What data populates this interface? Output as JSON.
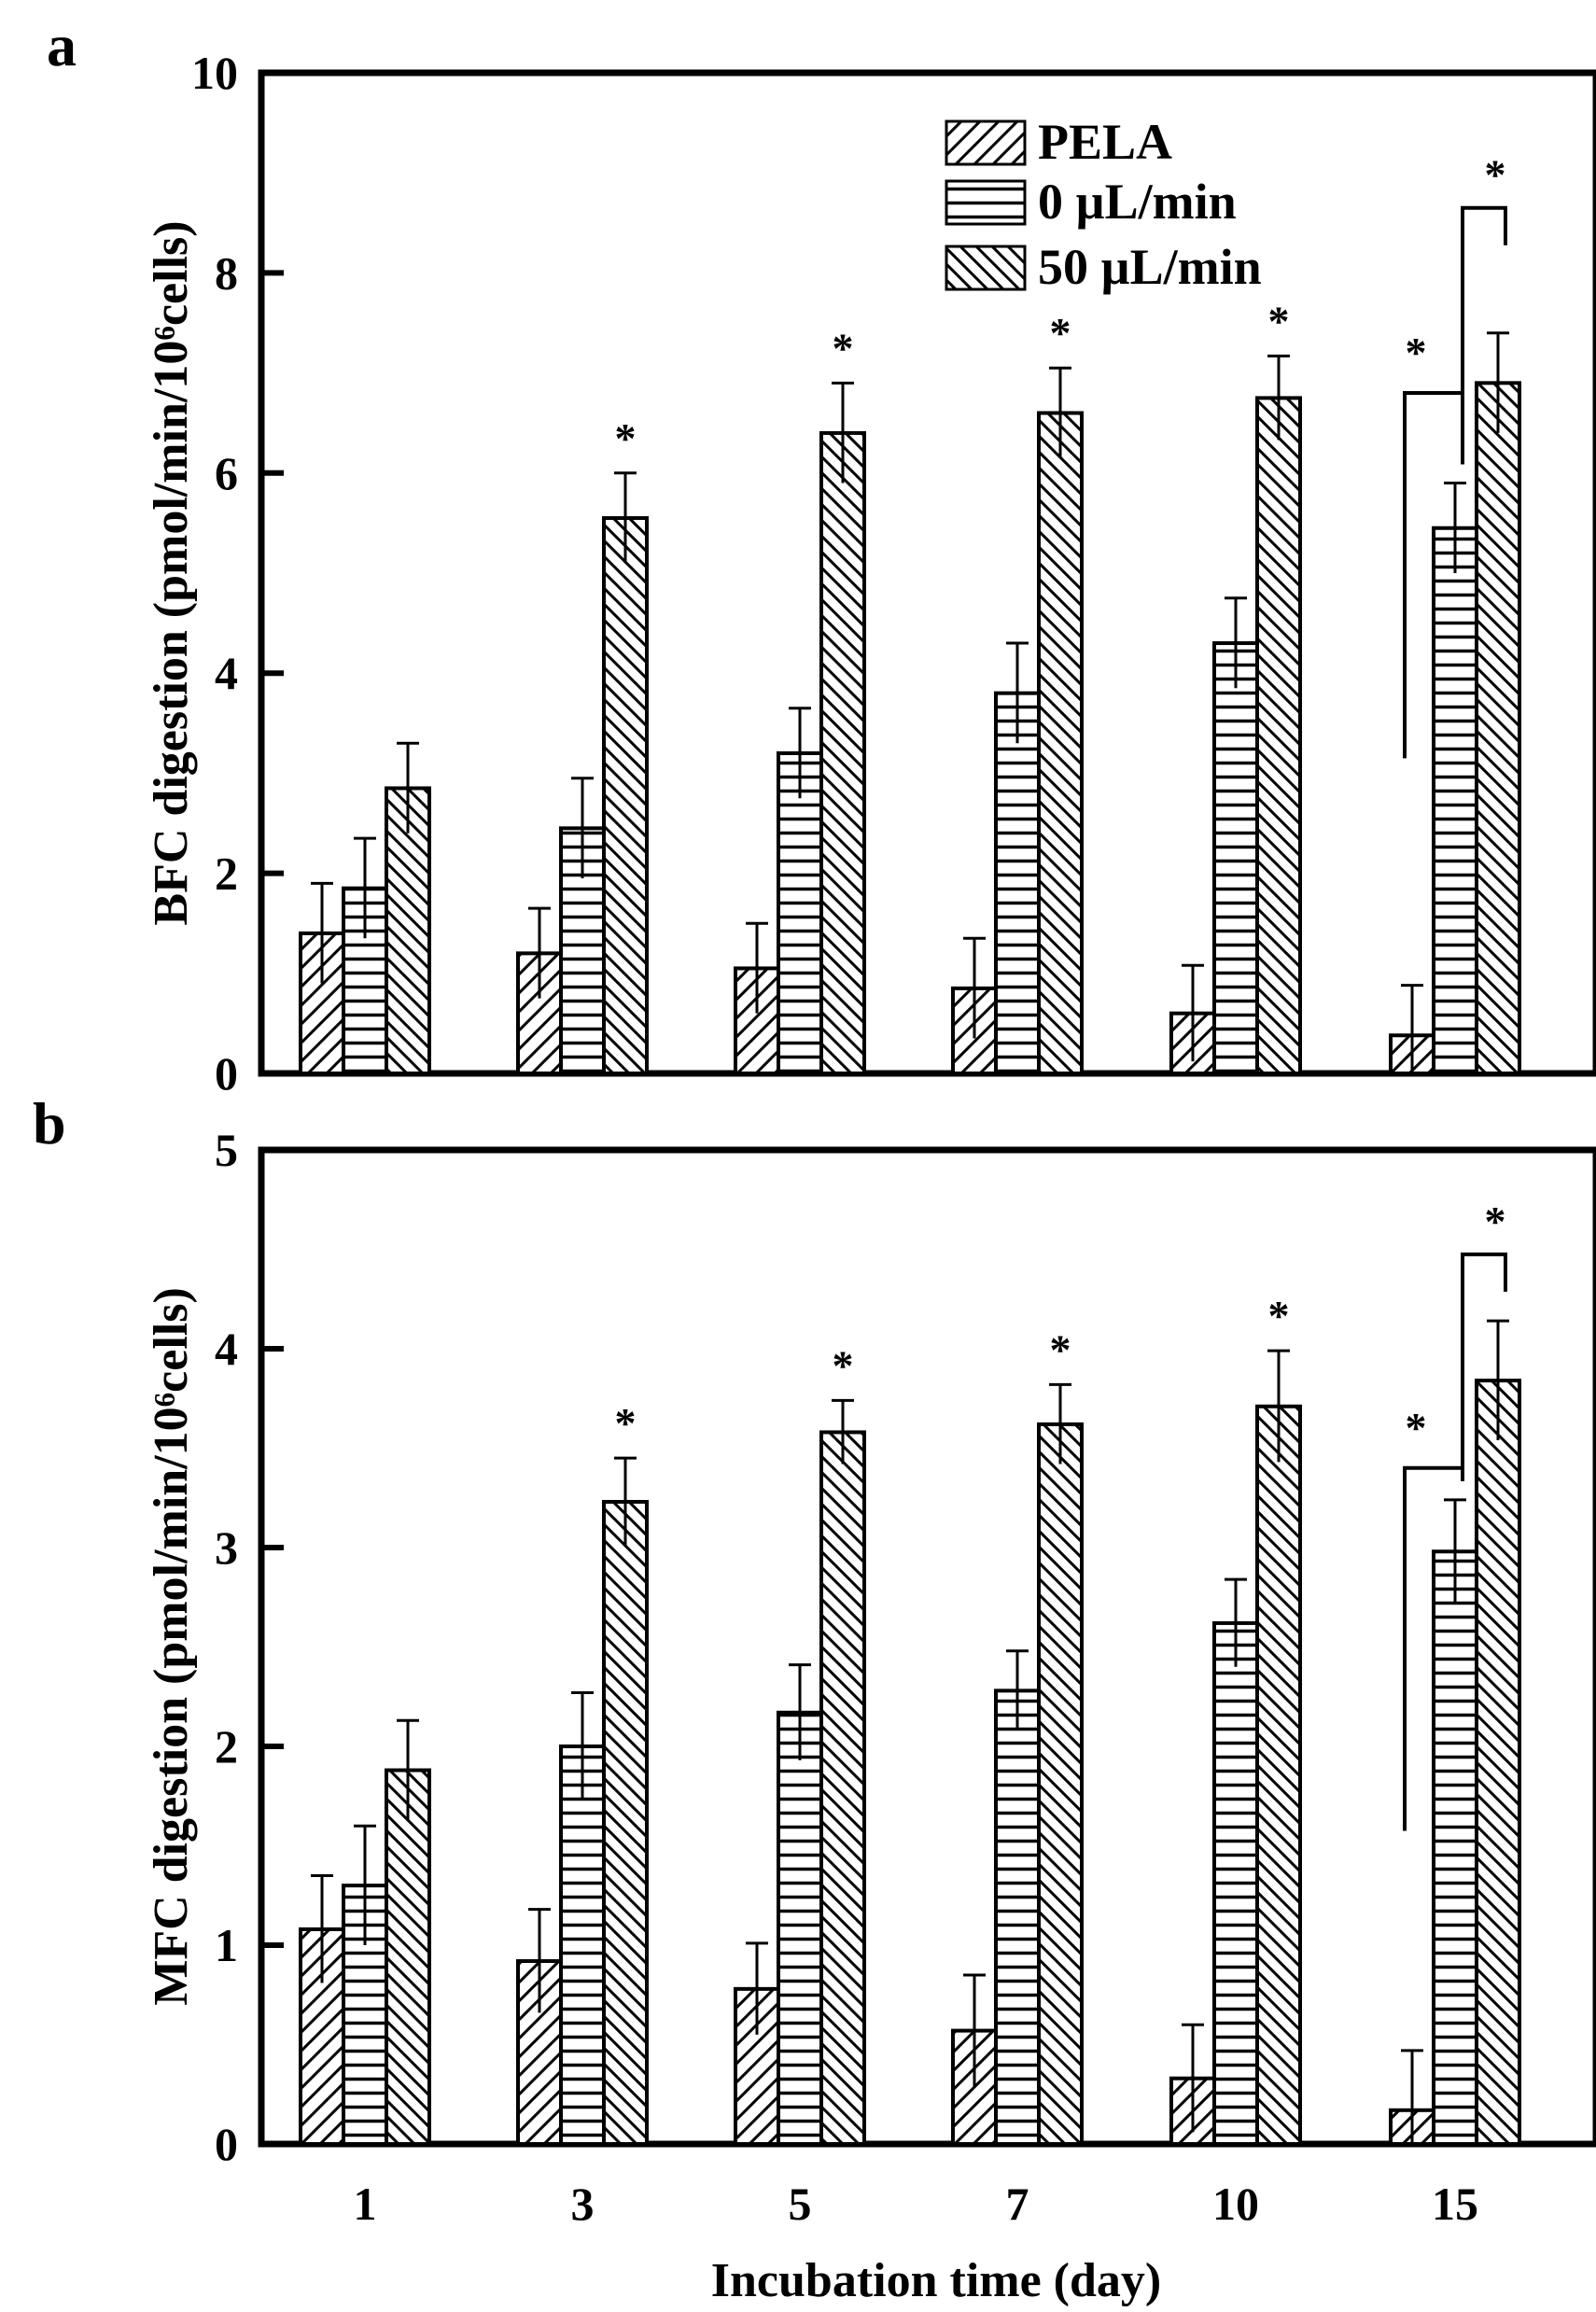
{
  "chart_data": [
    {
      "type": "bar",
      "panel": "a",
      "categories": [
        "1",
        "3",
        "5",
        "7",
        "10",
        "15"
      ],
      "series": [
        {
          "name": "PELA",
          "pattern": "hatch-forward",
          "values": [
            1.4,
            1.2,
            1.05,
            0.85,
            0.6,
            0.38
          ],
          "errors": [
            0.5,
            0.45,
            0.45,
            0.5,
            0.48,
            0.5
          ]
        },
        {
          "name": "0 µL/min",
          "pattern": "horizontal-lines",
          "values": [
            1.85,
            2.45,
            3.2,
            3.8,
            4.3,
            5.45
          ],
          "errors": [
            0.5,
            0.5,
            0.45,
            0.5,
            0.45,
            0.45
          ]
        },
        {
          "name": "50 µL/min",
          "pattern": "hatch-backward",
          "values": [
            2.85,
            5.55,
            6.4,
            6.6,
            6.75,
            6.9
          ],
          "errors": [
            0.45,
            0.45,
            0.5,
            0.45,
            0.42,
            0.5
          ]
        }
      ],
      "significance": [
        "",
        "*",
        "*",
        "*",
        "*",
        "*"
      ],
      "bracket_stars": [
        "*",
        "*"
      ],
      "ylabel": "BFC digestion (pmol/min/10⁶cells)",
      "xlabel": "",
      "ylim": [
        0,
        10
      ],
      "yticks": [
        "0",
        "2",
        "4",
        "6",
        "8",
        "10"
      ],
      "legend_position": "top-right"
    },
    {
      "type": "bar",
      "panel": "b",
      "categories": [
        "1",
        "3",
        "5",
        "7",
        "10",
        "15"
      ],
      "series": [
        {
          "name": "PELA",
          "pattern": "hatch-forward",
          "values": [
            1.08,
            0.92,
            0.78,
            0.57,
            0.33,
            0.17
          ],
          "errors": [
            0.27,
            0.26,
            0.23,
            0.28,
            0.27,
            0.3
          ]
        },
        {
          "name": "0 µL/min",
          "pattern": "horizontal-lines",
          "values": [
            1.3,
            2.0,
            2.17,
            2.28,
            2.62,
            2.98
          ],
          "errors": [
            0.3,
            0.27,
            0.24,
            0.2,
            0.22,
            0.26
          ]
        },
        {
          "name": "50 µL/min",
          "pattern": "hatch-backward",
          "values": [
            1.88,
            3.23,
            3.58,
            3.62,
            3.71,
            3.84
          ],
          "errors": [
            0.25,
            0.22,
            0.16,
            0.2,
            0.28,
            0.3
          ]
        }
      ],
      "significance": [
        "",
        "*",
        "*",
        "*",
        "*",
        "*"
      ],
      "bracket_stars": [
        "*",
        "*"
      ],
      "ylabel": "MFC digestion (pmol/min/10⁶cells)",
      "xlabel": "Incubation time (day)",
      "ylim": [
        0,
        5
      ],
      "yticks": [
        "0",
        "1",
        "2",
        "3",
        "4",
        "5"
      ],
      "legend_position": "none"
    }
  ]
}
